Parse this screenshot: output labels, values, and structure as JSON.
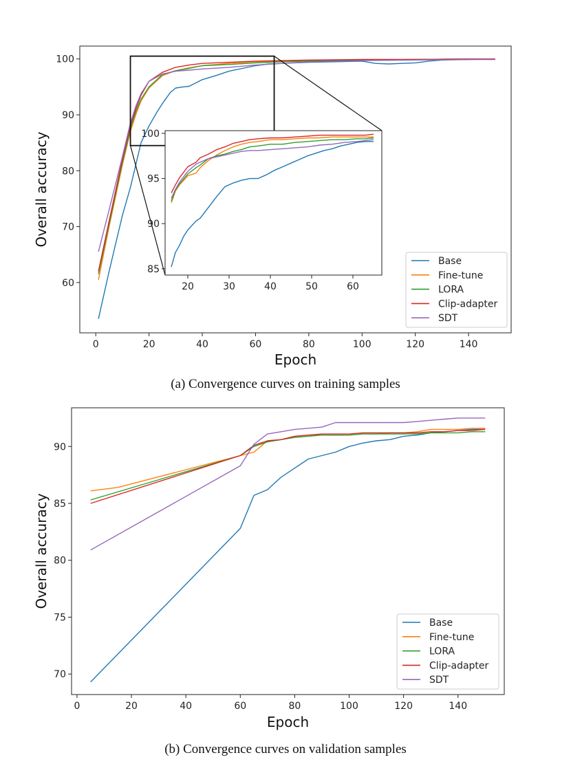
{
  "colors": {
    "Base": "#1f77b4",
    "Fine-tune": "#ff7f0e",
    "LORA": "#2ca02c",
    "Clip-adapter": "#d62728",
    "SDT": "#9467bd"
  },
  "captions": {
    "a": "(a) Convergence curves on training samples",
    "b": "(b) Convergence curves on validation samples"
  },
  "chart_data": [
    {
      "id": "training",
      "type": "line",
      "title": "",
      "xlabel": "Epoch",
      "ylabel": "Overall accuracy",
      "xlim": [
        -6,
        156
      ],
      "ylim": [
        51,
        102.3
      ],
      "xticks": [
        0,
        20,
        40,
        60,
        80,
        100,
        120,
        140
      ],
      "yticks": [
        60,
        70,
        80,
        90,
        100
      ],
      "legend": "lower-right",
      "grid": false,
      "series": [
        {
          "name": "Base",
          "x": [
            1,
            5,
            10,
            13,
            15,
            17,
            20,
            23,
            25,
            28,
            30,
            33,
            35,
            38,
            40,
            45,
            50,
            55,
            60,
            65,
            70,
            80,
            90,
            100,
            105,
            110,
            115,
            120,
            125,
            130,
            140,
            150
          ],
          "y": [
            53.5,
            62,
            72,
            77,
            81,
            85,
            88,
            90.5,
            92,
            94,
            94.8,
            95,
            95.1,
            95.8,
            96.3,
            97,
            97.8,
            98.3,
            98.8,
            99.1,
            99.2,
            99.4,
            99.5,
            99.6,
            99.2,
            99.1,
            99.2,
            99.3,
            99.6,
            99.8,
            99.9,
            100
          ]
        },
        {
          "name": "Fine-tune",
          "x": [
            1,
            5,
            10,
            13,
            15,
            17,
            20,
            25,
            30,
            35,
            40,
            50,
            60,
            70,
            80,
            100,
            120,
            140,
            150
          ],
          "y": [
            60.5,
            70,
            81,
            87,
            90,
            92.5,
            94.8,
            97,
            97.9,
            98.4,
            98.8,
            99.2,
            99.5,
            99.6,
            99.7,
            99.8,
            99.9,
            100,
            100
          ]
        },
        {
          "name": "LORA",
          "x": [
            1,
            5,
            10,
            13,
            15,
            17,
            20,
            25,
            30,
            35,
            40,
            50,
            60,
            70,
            80,
            100,
            120,
            140,
            150
          ],
          "y": [
            61.5,
            70.5,
            81.5,
            87.5,
            90.5,
            92.8,
            95,
            97.2,
            97.9,
            98.3,
            98.8,
            99,
            99.3,
            99.5,
            99.6,
            99.8,
            99.9,
            100,
            100
          ]
        },
        {
          "name": "Clip-adapter",
          "x": [
            1,
            5,
            10,
            13,
            15,
            17,
            20,
            25,
            30,
            35,
            40,
            50,
            60,
            70,
            80,
            100,
            120,
            140,
            150
          ],
          "y": [
            62,
            71,
            82,
            88,
            91,
            93.5,
            96,
            97.6,
            98.5,
            98.9,
            99.2,
            99.4,
            99.6,
            99.7,
            99.8,
            99.9,
            99.9,
            100,
            100
          ]
        },
        {
          "name": "SDT",
          "x": [
            1,
            5,
            10,
            13,
            15,
            17,
            20,
            25,
            30,
            35,
            40,
            50,
            60,
            70,
            80,
            100,
            120,
            140,
            150
          ],
          "y": [
            65.5,
            73,
            82.5,
            88.5,
            91.5,
            93.8,
            96,
            97.3,
            97.8,
            98,
            98.2,
            98.5,
            98.9,
            99.2,
            99.5,
            99.7,
            99.8,
            99.9,
            99.9
          ]
        }
      ],
      "zoom_box": {
        "xlim": [
          13,
          67
        ],
        "ylim": [
          84.5,
          100.5
        ]
      },
      "inset": {
        "xlim": [
          14.5,
          67
        ],
        "ylim": [
          84.3,
          100.3
        ],
        "xticks": [
          20,
          30,
          40,
          50,
          60
        ],
        "yticks": [
          85,
          90,
          95,
          100
        ],
        "series": [
          {
            "name": "Base",
            "x": [
              16,
              17,
              18,
              19,
              20,
              22,
              23,
              25,
              27,
              29,
              31,
              33,
              35,
              37,
              39,
              41,
              43,
              45,
              47,
              49,
              51,
              53,
              55,
              57,
              59,
              61,
              63,
              65
            ],
            "y": [
              85.2,
              86.8,
              87.6,
              88.6,
              89.3,
              90.3,
              90.6,
              91.8,
              93,
              94.1,
              94.5,
              94.8,
              95,
              95,
              95.4,
              95.9,
              96.3,
              96.7,
              97.1,
              97.5,
              97.8,
              98.1,
              98.3,
              98.6,
              98.8,
              99,
              99.1,
              99.1
            ]
          },
          {
            "name": "Fine-tune",
            "x": [
              16,
              17,
              18,
              20,
              22,
              23,
              25,
              27,
              29,
              31,
              33,
              35,
              37,
              40,
              43,
              46,
              49,
              52,
              55,
              58,
              61,
              63,
              65
            ],
            "y": [
              92.3,
              93.6,
              94.3,
              95.3,
              95.6,
              96.2,
              97,
              97.6,
              98.1,
              98.5,
              98.8,
              99,
              99.1,
              99.3,
              99.3,
              99.4,
              99.5,
              99.5,
              99.6,
              99.6,
              99.6,
              99.6,
              99.6
            ]
          },
          {
            "name": "LORA",
            "x": [
              16,
              17,
              18,
              20,
              22,
              23,
              25,
              27,
              29,
              31,
              33,
              35,
              37,
              40,
              43,
              46,
              49,
              52,
              55,
              58,
              61,
              63,
              65
            ],
            "y": [
              92.5,
              93.7,
              94.4,
              95.5,
              96.2,
              96.5,
              97.2,
              97.5,
              97.7,
              98,
              98.2,
              98.5,
              98.6,
              98.8,
              98.8,
              99,
              99.1,
              99.2,
              99.3,
              99.3,
              99.4,
              99.4,
              99.5
            ]
          },
          {
            "name": "Clip-adapter",
            "x": [
              16,
              17,
              18,
              20,
              22,
              23,
              25,
              27,
              29,
              31,
              33,
              35,
              37,
              40,
              43,
              46,
              49,
              52,
              55,
              58,
              61,
              63,
              65
            ],
            "y": [
              93.4,
              94.3,
              95.1,
              96.3,
              96.8,
              97.3,
              97.7,
              98.2,
              98.5,
              98.9,
              99.1,
              99.3,
              99.4,
              99.5,
              99.5,
              99.6,
              99.7,
              99.8,
              99.8,
              99.8,
              99.8,
              99.8,
              99.9
            ]
          },
          {
            "name": "SDT",
            "x": [
              16,
              17,
              18,
              20,
              22,
              23,
              25,
              27,
              29,
              31,
              33,
              35,
              37,
              40,
              43,
              46,
              49,
              52,
              55,
              58,
              61,
              63,
              65
            ],
            "y": [
              92.8,
              93.8,
              94.6,
              95.8,
              96.6,
              96.8,
              97.2,
              97.4,
              97.6,
              97.8,
              98,
              98.1,
              98.1,
              98.2,
              98.3,
              98.4,
              98.5,
              98.7,
              98.8,
              99,
              99.1,
              99.2,
              99.3
            ]
          }
        ]
      }
    },
    {
      "id": "validation",
      "type": "line",
      "title": "",
      "xlabel": "Epoch",
      "ylabel": "Overall accuracy",
      "xlim": [
        -2,
        157
      ],
      "ylim": [
        68.2,
        93.4
      ],
      "xticks": [
        0,
        20,
        40,
        60,
        80,
        100,
        120,
        140
      ],
      "yticks": [
        70,
        75,
        80,
        85,
        90
      ],
      "legend": "lower-right",
      "grid": false,
      "series": [
        {
          "name": "Base",
          "x": [
            5,
            60,
            65,
            70,
            75,
            80,
            85,
            90,
            95,
            100,
            105,
            110,
            115,
            120,
            125,
            130,
            135,
            140,
            145,
            150
          ],
          "y": [
            69.3,
            82.8,
            85.7,
            86.2,
            87.3,
            88.1,
            88.9,
            89.2,
            89.5,
            90,
            90.3,
            90.5,
            90.6,
            90.9,
            91,
            91.2,
            91.3,
            91.4,
            91.5,
            91.5
          ]
        },
        {
          "name": "Fine-tune",
          "x": [
            5,
            15,
            60,
            65,
            70,
            75,
            80,
            85,
            90,
            95,
            100,
            105,
            110,
            115,
            120,
            125,
            130,
            135,
            140,
            145,
            150
          ],
          "y": [
            86.1,
            86.4,
            89.2,
            89.5,
            90.5,
            90.6,
            90.9,
            91,
            91,
            91,
            91,
            91.1,
            91.1,
            91.2,
            91.2,
            91.3,
            91.5,
            91.5,
            91.5,
            91.6,
            91.6
          ]
        },
        {
          "name": "LORA",
          "x": [
            5,
            60,
            65,
            70,
            75,
            80,
            85,
            90,
            95,
            100,
            105,
            110,
            115,
            120,
            125,
            130,
            135,
            140,
            145,
            150
          ],
          "y": [
            85.3,
            89.2,
            90,
            90.4,
            90.6,
            90.8,
            90.9,
            91,
            91,
            91,
            91.1,
            91.1,
            91.1,
            91.1,
            91.1,
            91.2,
            91.2,
            91.2,
            91.3,
            91.3
          ]
        },
        {
          "name": "Clip-adapter",
          "x": [
            5,
            60,
            65,
            70,
            75,
            80,
            85,
            90,
            95,
            100,
            105,
            110,
            115,
            120,
            125,
            130,
            135,
            140,
            145,
            150
          ],
          "y": [
            85,
            89.2,
            90.1,
            90.5,
            90.6,
            90.9,
            91,
            91.1,
            91.1,
            91.1,
            91.2,
            91.2,
            91.2,
            91.2,
            91.2,
            91.3,
            91.3,
            91.4,
            91.4,
            91.5
          ]
        },
        {
          "name": "SDT",
          "x": [
            5,
            60,
            65,
            70,
            75,
            80,
            85,
            90,
            95,
            100,
            105,
            110,
            115,
            120,
            125,
            130,
            135,
            140,
            145,
            150
          ],
          "y": [
            80.9,
            88.3,
            90.2,
            91.1,
            91.3,
            91.5,
            91.6,
            91.7,
            92.1,
            92.1,
            92.1,
            92.1,
            92.1,
            92.1,
            92.2,
            92.3,
            92.4,
            92.5,
            92.5,
            92.5
          ]
        }
      ]
    }
  ]
}
